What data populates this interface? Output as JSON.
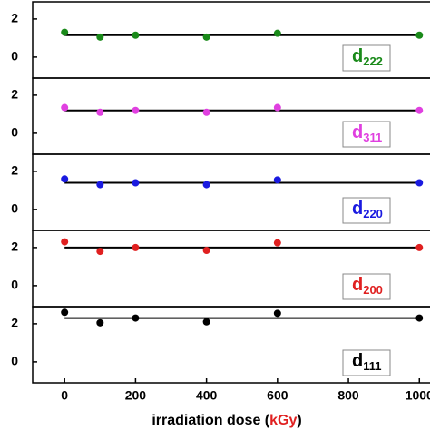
{
  "chart_data": [
    {
      "type": "scatter",
      "label": "d",
      "subscript": "222",
      "color": "#1a8a1a",
      "x": [
        0,
        100,
        200,
        400,
        600,
        1000
      ],
      "values": [
        1.3,
        1.05,
        1.15,
        1.05,
        1.25,
        1.15
      ],
      "fit": 1.15,
      "xlim": [
        -90,
        1030
      ],
      "ylim": [
        -1.1,
        2.9
      ],
      "yticks": [
        0,
        2
      ]
    },
    {
      "type": "scatter",
      "label": "d",
      "subscript": "311",
      "color": "#e040e0",
      "x": [
        0,
        100,
        200,
        400,
        600,
        1000
      ],
      "values": [
        1.35,
        1.1,
        1.2,
        1.1,
        1.35,
        1.2
      ],
      "fit": 1.2,
      "xlim": [
        -90,
        1030
      ],
      "ylim": [
        -1.1,
        2.9
      ],
      "yticks": [
        0,
        2
      ]
    },
    {
      "type": "scatter",
      "label": "d",
      "subscript": "220",
      "color": "#1a1ae0",
      "x": [
        0,
        100,
        200,
        400,
        600,
        1000
      ],
      "values": [
        1.6,
        1.3,
        1.4,
        1.3,
        1.55,
        1.4
      ],
      "fit": 1.4,
      "xlim": [
        -90,
        1030
      ],
      "ylim": [
        -1.1,
        2.9
      ],
      "yticks": [
        0,
        2
      ]
    },
    {
      "type": "scatter",
      "label": "d",
      "subscript": "200",
      "color": "#e02020",
      "x": [
        0,
        100,
        200,
        400,
        600,
        1000
      ],
      "values": [
        2.3,
        1.8,
        2.0,
        1.85,
        2.25,
        2.0
      ],
      "fit": 2.0,
      "xlim": [
        -90,
        1030
      ],
      "ylim": [
        -1.1,
        2.9
      ],
      "yticks": [
        0,
        2
      ]
    },
    {
      "type": "scatter",
      "label": "d",
      "subscript": "111",
      "color": "#000000",
      "x": [
        0,
        100,
        200,
        400,
        600,
        1000
      ],
      "values": [
        2.6,
        2.05,
        2.3,
        2.1,
        2.55,
        2.3
      ],
      "fit": 2.3,
      "xlim": [
        -90,
        1030
      ],
      "ylim": [
        -1.1,
        2.9
      ],
      "yticks": [
        0,
        2
      ],
      "xticks": [
        0,
        200,
        400,
        600,
        800,
        1000
      ],
      "xlabel": [
        "irradiation dose (",
        "kGy",
        ")"
      ],
      "xlabel_colors": [
        "#000000",
        "#e02020",
        "#000000"
      ]
    }
  ]
}
